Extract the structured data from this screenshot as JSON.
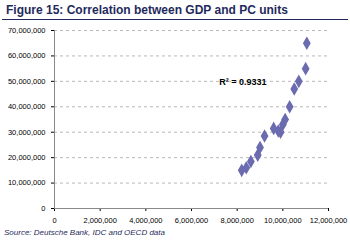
{
  "chart_data": {
    "type": "scatter",
    "title": "Figure 15: Correlation between GDP and PC units",
    "source": "Source: Deutsche Bank, IDC and OECD data",
    "annotation": "R² = 0.9331",
    "x": [
      8200000,
      8400000,
      8600000,
      8900000,
      9000000,
      9200000,
      9600000,
      9800000,
      9900000,
      10000000,
      10100000,
      10300000,
      10500000,
      10700000,
      11000000,
      11050000
    ],
    "values": [
      15000000,
      16000000,
      18500000,
      21000000,
      24000000,
      28500000,
      31500000,
      30500000,
      30000000,
      33000000,
      35000000,
      40000000,
      47000000,
      50000000,
      55000000,
      65000000
    ],
    "color": "#6b6bb0",
    "marker": "diamond",
    "xlim": [
      0,
      12000000
    ],
    "xticks": [
      0,
      {
        "value": 2000000,
        "label": "2,000,000"
      },
      {
        "value": 4000000,
        "label": "4,000,000"
      },
      {
        "value": 6000000,
        "label": "6,000,000"
      },
      {
        "value": 8000000,
        "label": "8,000,000"
      },
      {
        "value": 10000000,
        "label": "10,000,000"
      },
      {
        "value": 12000000,
        "label": "12,000,000"
      }
    ],
    "ylim": [
      0,
      70000000
    ],
    "yticks": [
      0,
      {
        "value": 10000000,
        "label": "10,000,000"
      },
      {
        "value": 20000000,
        "label": "20,000,000"
      },
      {
        "value": 30000000,
        "label": "30,000,000"
      },
      {
        "value": 40000000,
        "label": "40,000,000"
      },
      {
        "value": 50000000,
        "label": "50,000,000"
      },
      {
        "value": 60000000,
        "label": "60,000,000"
      },
      {
        "value": 70000000,
        "label": "70,000,000"
      }
    ],
    "grid": true
  }
}
